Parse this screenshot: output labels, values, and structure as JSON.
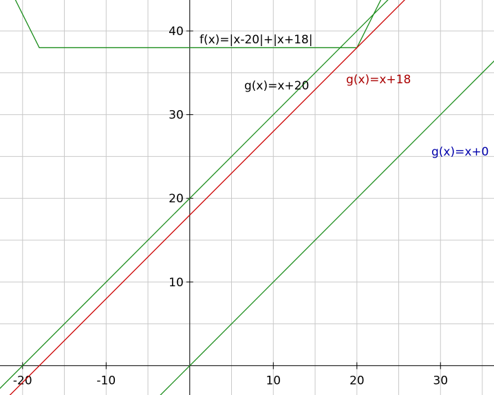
{
  "chart_data": {
    "type": "line",
    "xlim": [
      -22.7,
      36.4
    ],
    "ylim": [
      -3.5,
      43.7
    ],
    "xticks": [
      -20,
      -10,
      10,
      20,
      30
    ],
    "yticks": [
      10,
      20,
      30,
      40
    ],
    "xgrid": [
      -20,
      -15,
      -10,
      -5,
      0,
      5,
      10,
      15,
      20,
      25,
      30,
      35
    ],
    "ygrid": [
      0,
      5,
      10,
      15,
      20,
      25,
      30,
      35,
      40
    ],
    "grid": true,
    "series": [
      {
        "name": "f(x)=|x-20|+|x+18|",
        "color": "#1a8c1a",
        "label_color": "#000000",
        "x": [
          -22,
          -18,
          20,
          23
        ],
        "values": [
          46,
          38,
          38,
          44
        ]
      },
      {
        "name": "g(x)=x+20",
        "color": "#1a8c1a",
        "label_color": "#000000",
        "x": [
          -24,
          24
        ],
        "values": [
          -4,
          44
        ]
      },
      {
        "name": "g(x)=x+18",
        "color": "#cc0000",
        "label_color": "#aa0000",
        "x": [
          -22,
          26
        ],
        "values": [
          -4,
          44
        ]
      },
      {
        "name": "g(x)=x+0",
        "color": "#1a8c1a",
        "label_color": "#0000aa",
        "x": [
          -4,
          37
        ],
        "values": [
          -4,
          37
        ]
      }
    ]
  }
}
